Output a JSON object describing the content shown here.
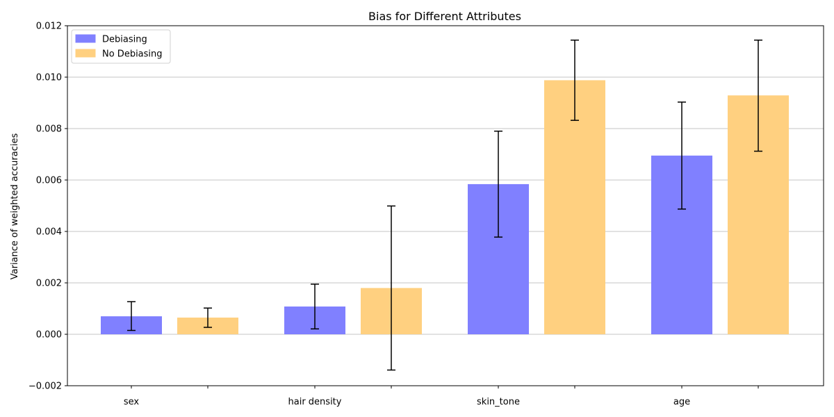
{
  "chart_data": {
    "type": "bar",
    "title": "Bias for Different Attributes",
    "xlabel": "",
    "ylabel": "Variance of weighted accuracies",
    "categories": [
      "sex",
      "hair density",
      "skin_tone",
      "age"
    ],
    "series": [
      {
        "name": "Debiasing",
        "color": "#8080ff",
        "values": [
          0.0007,
          0.00108,
          0.00584,
          0.00695
        ],
        "err_low": [
          0.00015,
          0.00021,
          0.00378,
          0.00487
        ],
        "err_high": [
          0.00127,
          0.00195,
          0.0079,
          0.00903
        ]
      },
      {
        "name": "No Debiasing",
        "color": "#ffd080",
        "values": [
          0.00065,
          0.0018,
          0.00988,
          0.00929
        ],
        "err_low": [
          0.00027,
          -0.00139,
          0.00832,
          0.00712
        ],
        "err_high": [
          0.00102,
          0.00499,
          0.01144,
          0.01144
        ]
      }
    ],
    "ylim": [
      -0.002,
      0.012
    ],
    "yticks": [
      -0.002,
      0.0,
      0.002,
      0.004,
      0.006,
      0.008,
      0.01,
      0.012
    ],
    "ytick_labels": [
      "−0.002",
      "0.000",
      "0.002",
      "0.004",
      "0.006",
      "0.008",
      "0.010",
      "0.012"
    ],
    "grid": "y",
    "legend_position": "top-left"
  }
}
